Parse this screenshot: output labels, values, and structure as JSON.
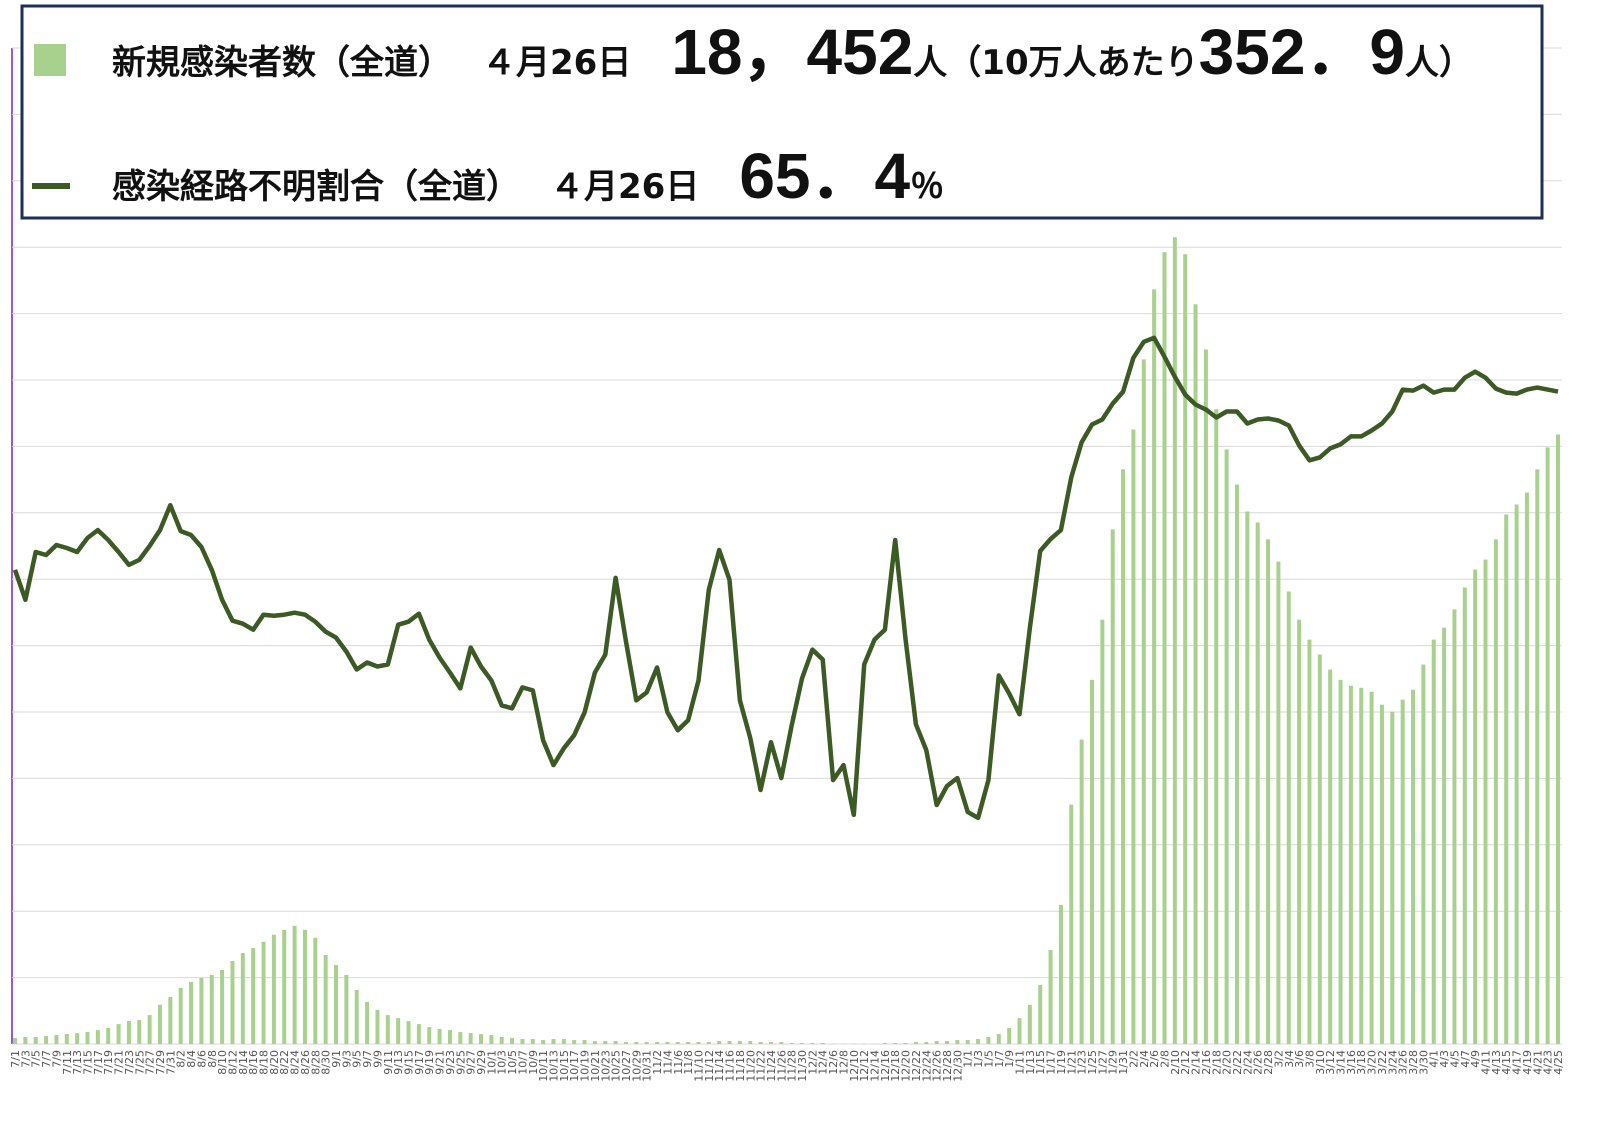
{
  "chart_data": {
    "type": "bar_line",
    "categories": [
      "7/1",
      "7/3",
      "7/5",
      "7/7",
      "7/9",
      "7/11",
      "7/13",
      "7/15",
      "7/17",
      "7/19",
      "7/21",
      "7/23",
      "7/25",
      "7/27",
      "7/29",
      "7/31",
      "8/2",
      "8/4",
      "8/6",
      "8/8",
      "8/10",
      "8/12",
      "8/14",
      "8/16",
      "8/18",
      "8/20",
      "8/22",
      "8/24",
      "8/26",
      "8/28",
      "8/30",
      "9/1",
      "9/3",
      "9/5",
      "9/7",
      "9/9",
      "9/11",
      "9/13",
      "9/15",
      "9/17",
      "9/19",
      "9/21",
      "9/23",
      "9/25",
      "9/27",
      "9/29",
      "10/1",
      "10/3",
      "10/5",
      "10/7",
      "10/9",
      "10/11",
      "10/13",
      "10/15",
      "10/17",
      "10/19",
      "10/21",
      "10/23",
      "10/25",
      "10/27",
      "10/29",
      "10/31",
      "11/2",
      "11/4",
      "11/6",
      "11/8",
      "11/10",
      "11/12",
      "11/14",
      "11/16",
      "11/18",
      "11/20",
      "11/22",
      "11/24",
      "11/26",
      "11/28",
      "11/30",
      "12/2",
      "12/4",
      "12/6",
      "12/8",
      "12/10",
      "12/12",
      "12/14",
      "12/16",
      "12/18",
      "12/20",
      "12/22",
      "12/24",
      "12/26",
      "12/28",
      "12/30",
      "1/1",
      "1/3",
      "1/5",
      "1/7",
      "1/9",
      "1/11",
      "1/13",
      "1/15",
      "1/17",
      "1/19",
      "1/21",
      "1/23",
      "1/25",
      "1/27",
      "1/29",
      "1/31",
      "2/2",
      "2/4",
      "2/6",
      "2/8",
      "2/10",
      "2/12",
      "2/14",
      "2/16",
      "2/18",
      "2/20",
      "2/22",
      "2/24",
      "2/26",
      "2/28",
      "3/2",
      "3/4",
      "3/6",
      "3/8",
      "3/10",
      "3/12",
      "3/14",
      "3/16",
      "3/18",
      "3/20",
      "3/22",
      "3/24",
      "3/26",
      "3/28",
      "3/30",
      "4/1",
      "4/3",
      "4/5",
      "4/7",
      "4/9",
      "4/11",
      "4/13",
      "4/15",
      "4/17",
      "4/19",
      "4/21",
      "4/23",
      "4/25"
    ],
    "series": [
      {
        "name": "新規感染者数（全道）",
        "type": "bar",
        "color": "#a9d18e",
        "values": [
          180,
          210,
          210,
          240,
          270,
          300,
          330,
          360,
          420,
          480,
          600,
          690,
          720,
          870,
          1180,
          1420,
          1690,
          1870,
          1990,
          2080,
          2230,
          2500,
          2740,
          2890,
          3080,
          3290,
          3440,
          3560,
          3440,
          3200,
          2680,
          2380,
          2080,
          1630,
          1270,
          1030,
          870,
          780,
          690,
          600,
          510,
          450,
          420,
          360,
          330,
          300,
          270,
          210,
          180,
          150,
          150,
          120,
          150,
          150,
          120,
          120,
          90,
          90,
          90,
          60,
          60,
          60,
          60,
          60,
          60,
          60,
          60,
          60,
          90,
          90,
          90,
          90,
          60,
          60,
          60,
          30,
          30,
          30,
          30,
          10,
          10,
          10,
          10,
          10,
          30,
          30,
          30,
          60,
          60,
          90,
          90,
          120,
          120,
          150,
          210,
          300,
          480,
          780,
          1180,
          1780,
          2830,
          4190,
          7210,
          9170,
          10970,
          12780,
          15500,
          17310,
          18510,
          20620,
          22730,
          23850,
          24300,
          23790,
          22280,
          20920,
          19120,
          17910,
          16850,
          16040,
          15710,
          15200,
          14530,
          13630,
          12780,
          12180,
          11730,
          11280,
          10970,
          10790,
          10730,
          10610,
          10220,
          10010,
          10370,
          10670,
          11430,
          12180,
          12540,
          13090,
          13750,
          14290,
          14590,
          15200,
          15950,
          16250,
          16610,
          17310,
          17970,
          18360
        ]
      },
      {
        "name": "感染経路不明割合（全道）",
        "type": "line",
        "axis": "y2",
        "color": "#3b5a24",
        "values": [
          47.6,
          44.6,
          49.4,
          49.1,
          50.1,
          49.8,
          49.4,
          50.8,
          51.6,
          50.6,
          49.4,
          48.1,
          48.6,
          50.0,
          51.6,
          54.1,
          51.5,
          51.1,
          49.9,
          47.6,
          44.6,
          42.5,
          42.2,
          41.6,
          43.1,
          43.0,
          43.1,
          43.3,
          43.1,
          42.4,
          41.4,
          40.8,
          39.4,
          37.6,
          38.3,
          37.9,
          38.1,
          42.1,
          42.4,
          43.2,
          40.6,
          38.8,
          37.3,
          35.7,
          39.8,
          37.9,
          36.5,
          34.0,
          33.7,
          35.8,
          35.5,
          30.5,
          28.0,
          29.7,
          31.0,
          33.3,
          37.3,
          39.1,
          46.8,
          40.4,
          34.5,
          35.3,
          37.8,
          33.3,
          31.5,
          32.5,
          36.5,
          45.6,
          49.6,
          46.6,
          34.5,
          30.7,
          25.5,
          30.3,
          26.7,
          32.0,
          36.7,
          39.6,
          38.6,
          26.5,
          28.0,
          23.0,
          38.1,
          40.6,
          41.6,
          50.6,
          40.6,
          32.1,
          29.5,
          24.0,
          25.9,
          26.7,
          23.3,
          22.7,
          26.5,
          37.0,
          35.2,
          33.1,
          41.8,
          49.5,
          50.7,
          51.6,
          56.9,
          60.4,
          62.2,
          62.7,
          64.3,
          65.5,
          68.9,
          70.5,
          70.9,
          69.0,
          67.0,
          65.2,
          64.2,
          63.7,
          62.9,
          63.5,
          63.5,
          62.3,
          62.7,
          62.8,
          62.6,
          62.1,
          60.1,
          58.6,
          58.9,
          59.8,
          60.2,
          61.0,
          61.0,
          61.6,
          62.3,
          63.5,
          65.7,
          65.6,
          66.1,
          65.4,
          65.7,
          65.7,
          66.9,
          67.5,
          66.9,
          65.8,
          65.4,
          65.3,
          65.7,
          65.9,
          65.7,
          65.5
        ]
      }
    ],
    "legend_notes": [
      {
        "date": "４月26日",
        "parts": [
          "18，452",
          "人（10万人あたり",
          "352．9",
          "人）"
        ]
      },
      {
        "date": "４月26日",
        "parts": [
          "65．4",
          "％"
        ]
      }
    ],
    "ylim": [
      0,
      30000
    ],
    "yticks": [
      0,
      2000,
      4000,
      6000,
      8000,
      10000,
      12000,
      14000,
      16000,
      18000,
      20000,
      22000,
      24000,
      26000,
      28000,
      30000
    ],
    "y2lim": [
      0,
      100
    ],
    "grid": true
  }
}
